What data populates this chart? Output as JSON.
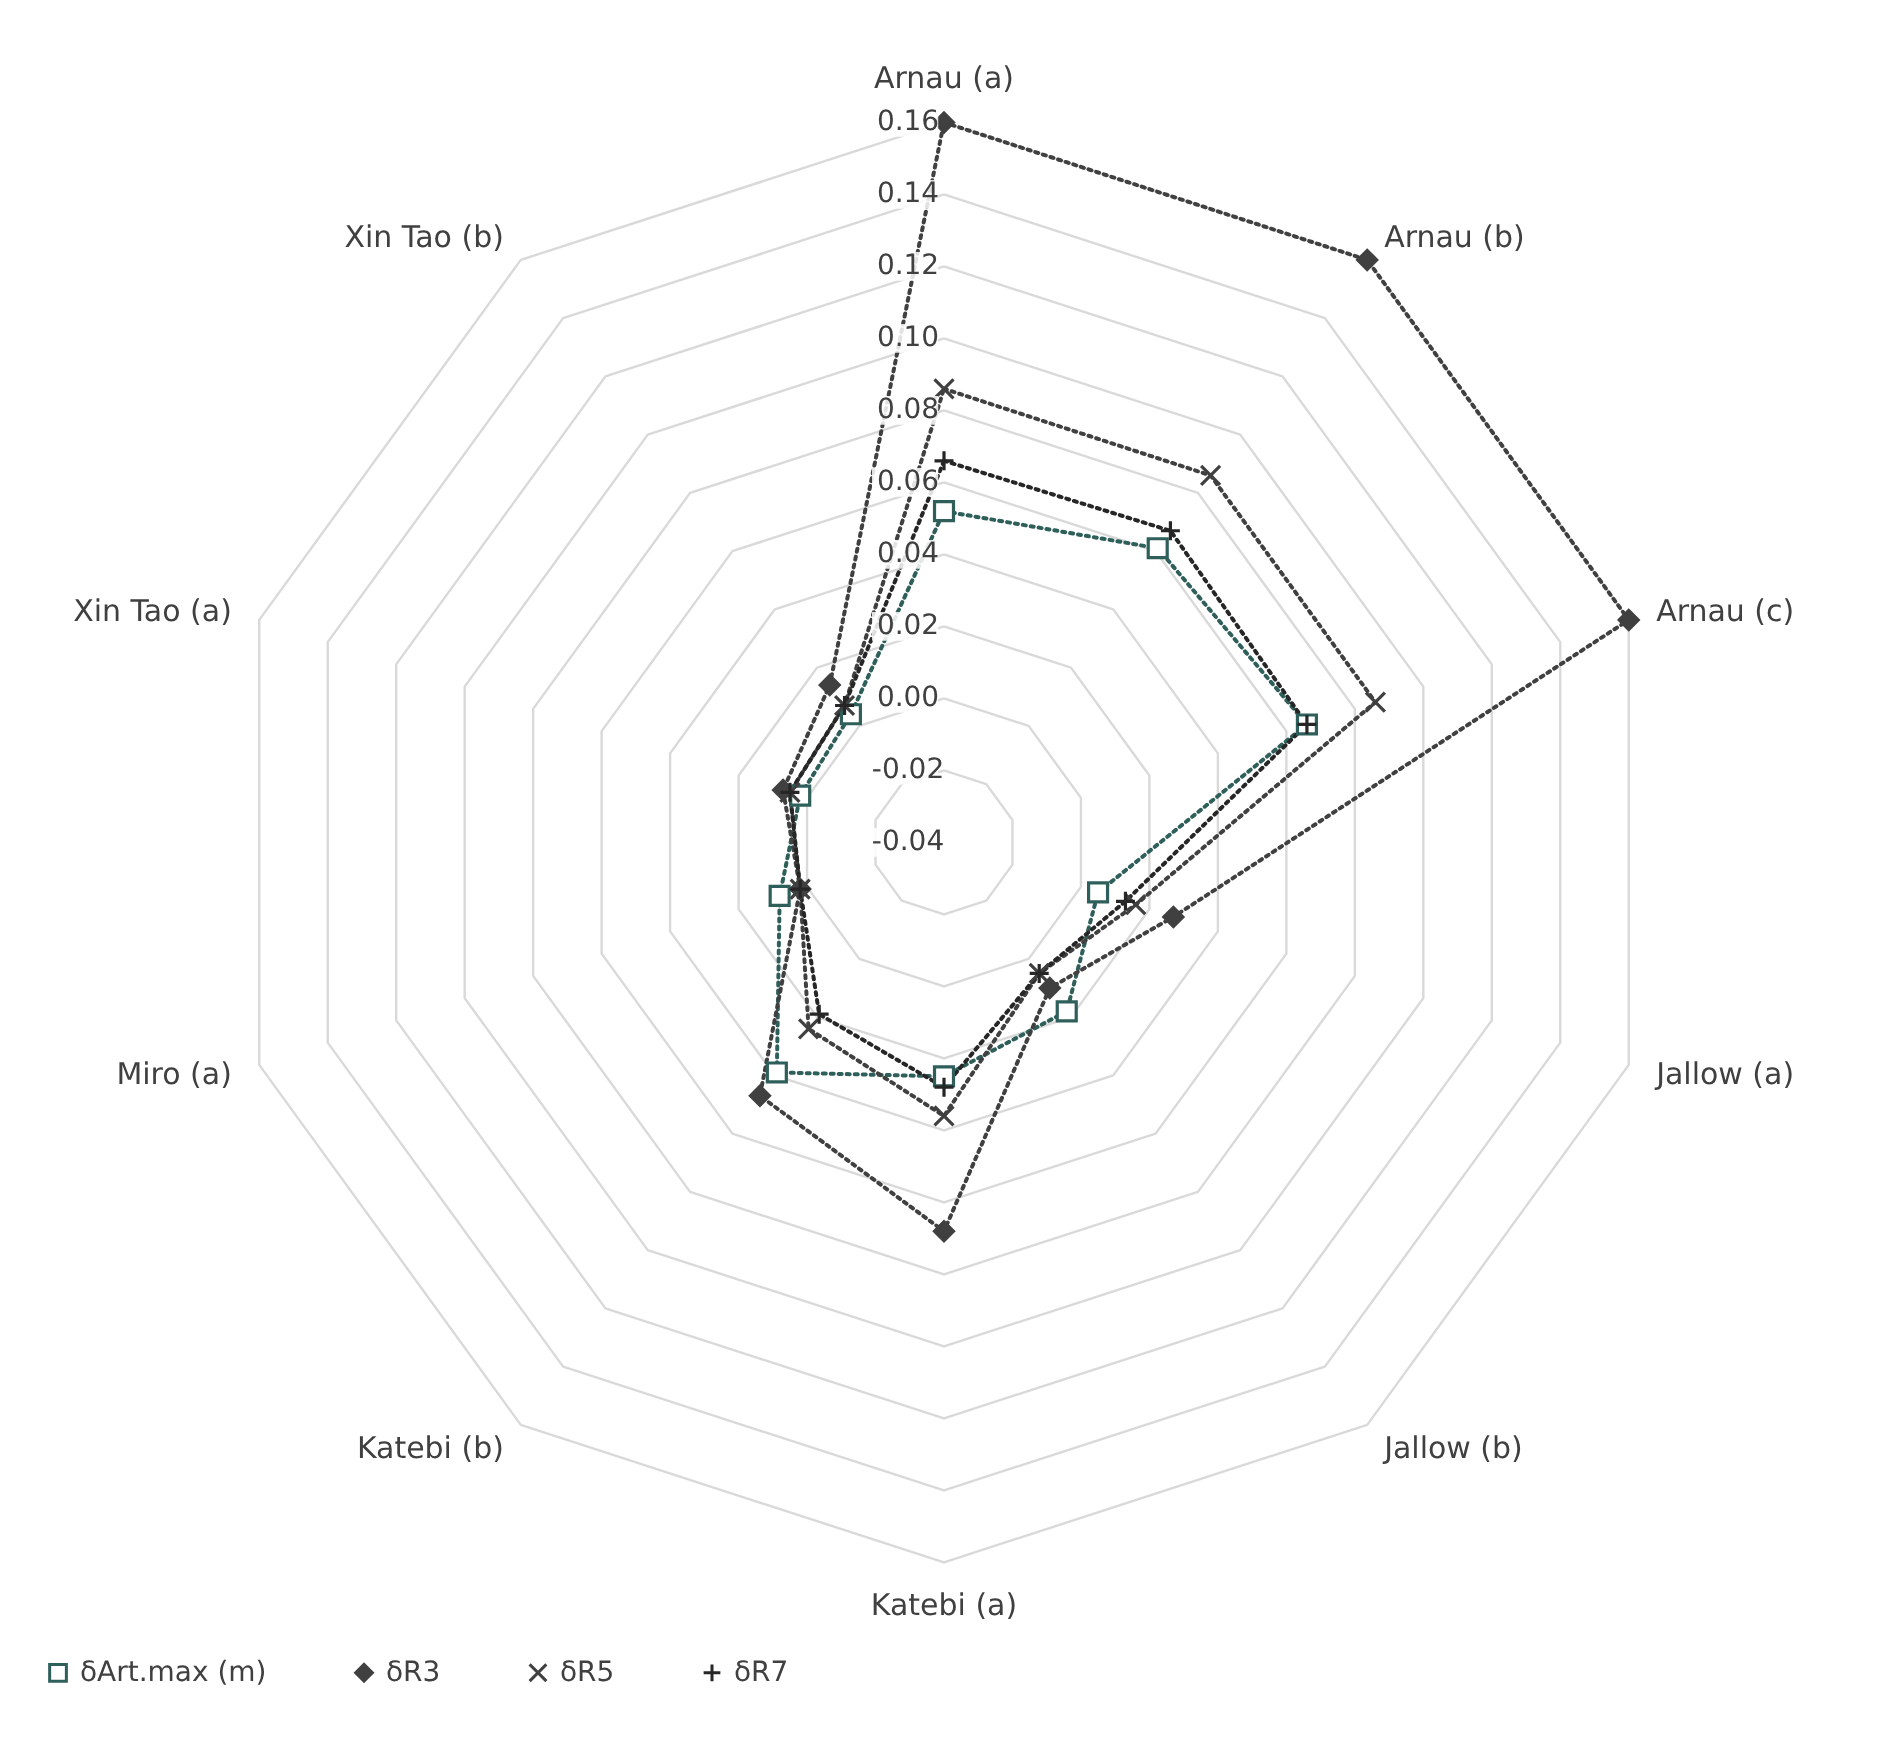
{
  "chart_data": {
    "type": "radar",
    "categories": [
      "Arnau (a)",
      "Arnau (b)",
      "Arnau (c)",
      "Jallow (a)",
      "Jallow (b)",
      "Katebi (a)",
      "Katebi (b)",
      "Miro (a)",
      "Xin Tao (a)",
      "Xin Tao (b)"
    ],
    "ylim": [
      -0.04,
      0.16
    ],
    "yticks": [
      {
        "value": -0.04,
        "label": "-0.04"
      },
      {
        "value": -0.02,
        "label": "-0.02"
      },
      {
        "value": 0,
        "label": "0.00"
      },
      {
        "value": 0.02,
        "label": "0.02"
      },
      {
        "value": 0.04,
        "label": "0.04"
      },
      {
        "value": 0.06,
        "label": "0.06"
      },
      {
        "value": 0.08,
        "label": "0.08"
      },
      {
        "value": 0.1,
        "label": "0.10"
      },
      {
        "value": 0.12,
        "label": "0.12"
      },
      {
        "value": 0.14,
        "label": "0.14"
      },
      {
        "value": 0.16,
        "label": "0.16"
      }
    ],
    "grid": true,
    "legend": "bottom",
    "line_style": "dotted",
    "series": [
      {
        "name": "δArt.max (m)",
        "color": "#2f5f5a",
        "marker": "square",
        "values": [
          0.052,
          0.061,
          0.066,
          0.005,
          0.018,
          0.025,
          0.039,
          0.008,
          0.002,
          0.004
        ]
      },
      {
        "name": "δR3",
        "color": "#404040",
        "marker": "diamond",
        "values": [
          0.16,
          0.16,
          0.16,
          0.027,
          0.01,
          0.068,
          0.047,
          0.002,
          0.007,
          0.014
        ]
      },
      {
        "name": "δR5",
        "color": "#404040",
        "marker": "cross",
        "values": [
          0.086,
          0.086,
          0.086,
          0.016,
          0.005,
          0.036,
          0.024,
          0.002,
          0.005,
          0.007
        ]
      },
      {
        "name": "δR7",
        "color": "#262626",
        "marker": "plus",
        "values": [
          0.066,
          0.067,
          0.066,
          0.013,
          0.005,
          0.028,
          0.019,
          0.002,
          0.005,
          0.007
        ]
      }
    ]
  }
}
